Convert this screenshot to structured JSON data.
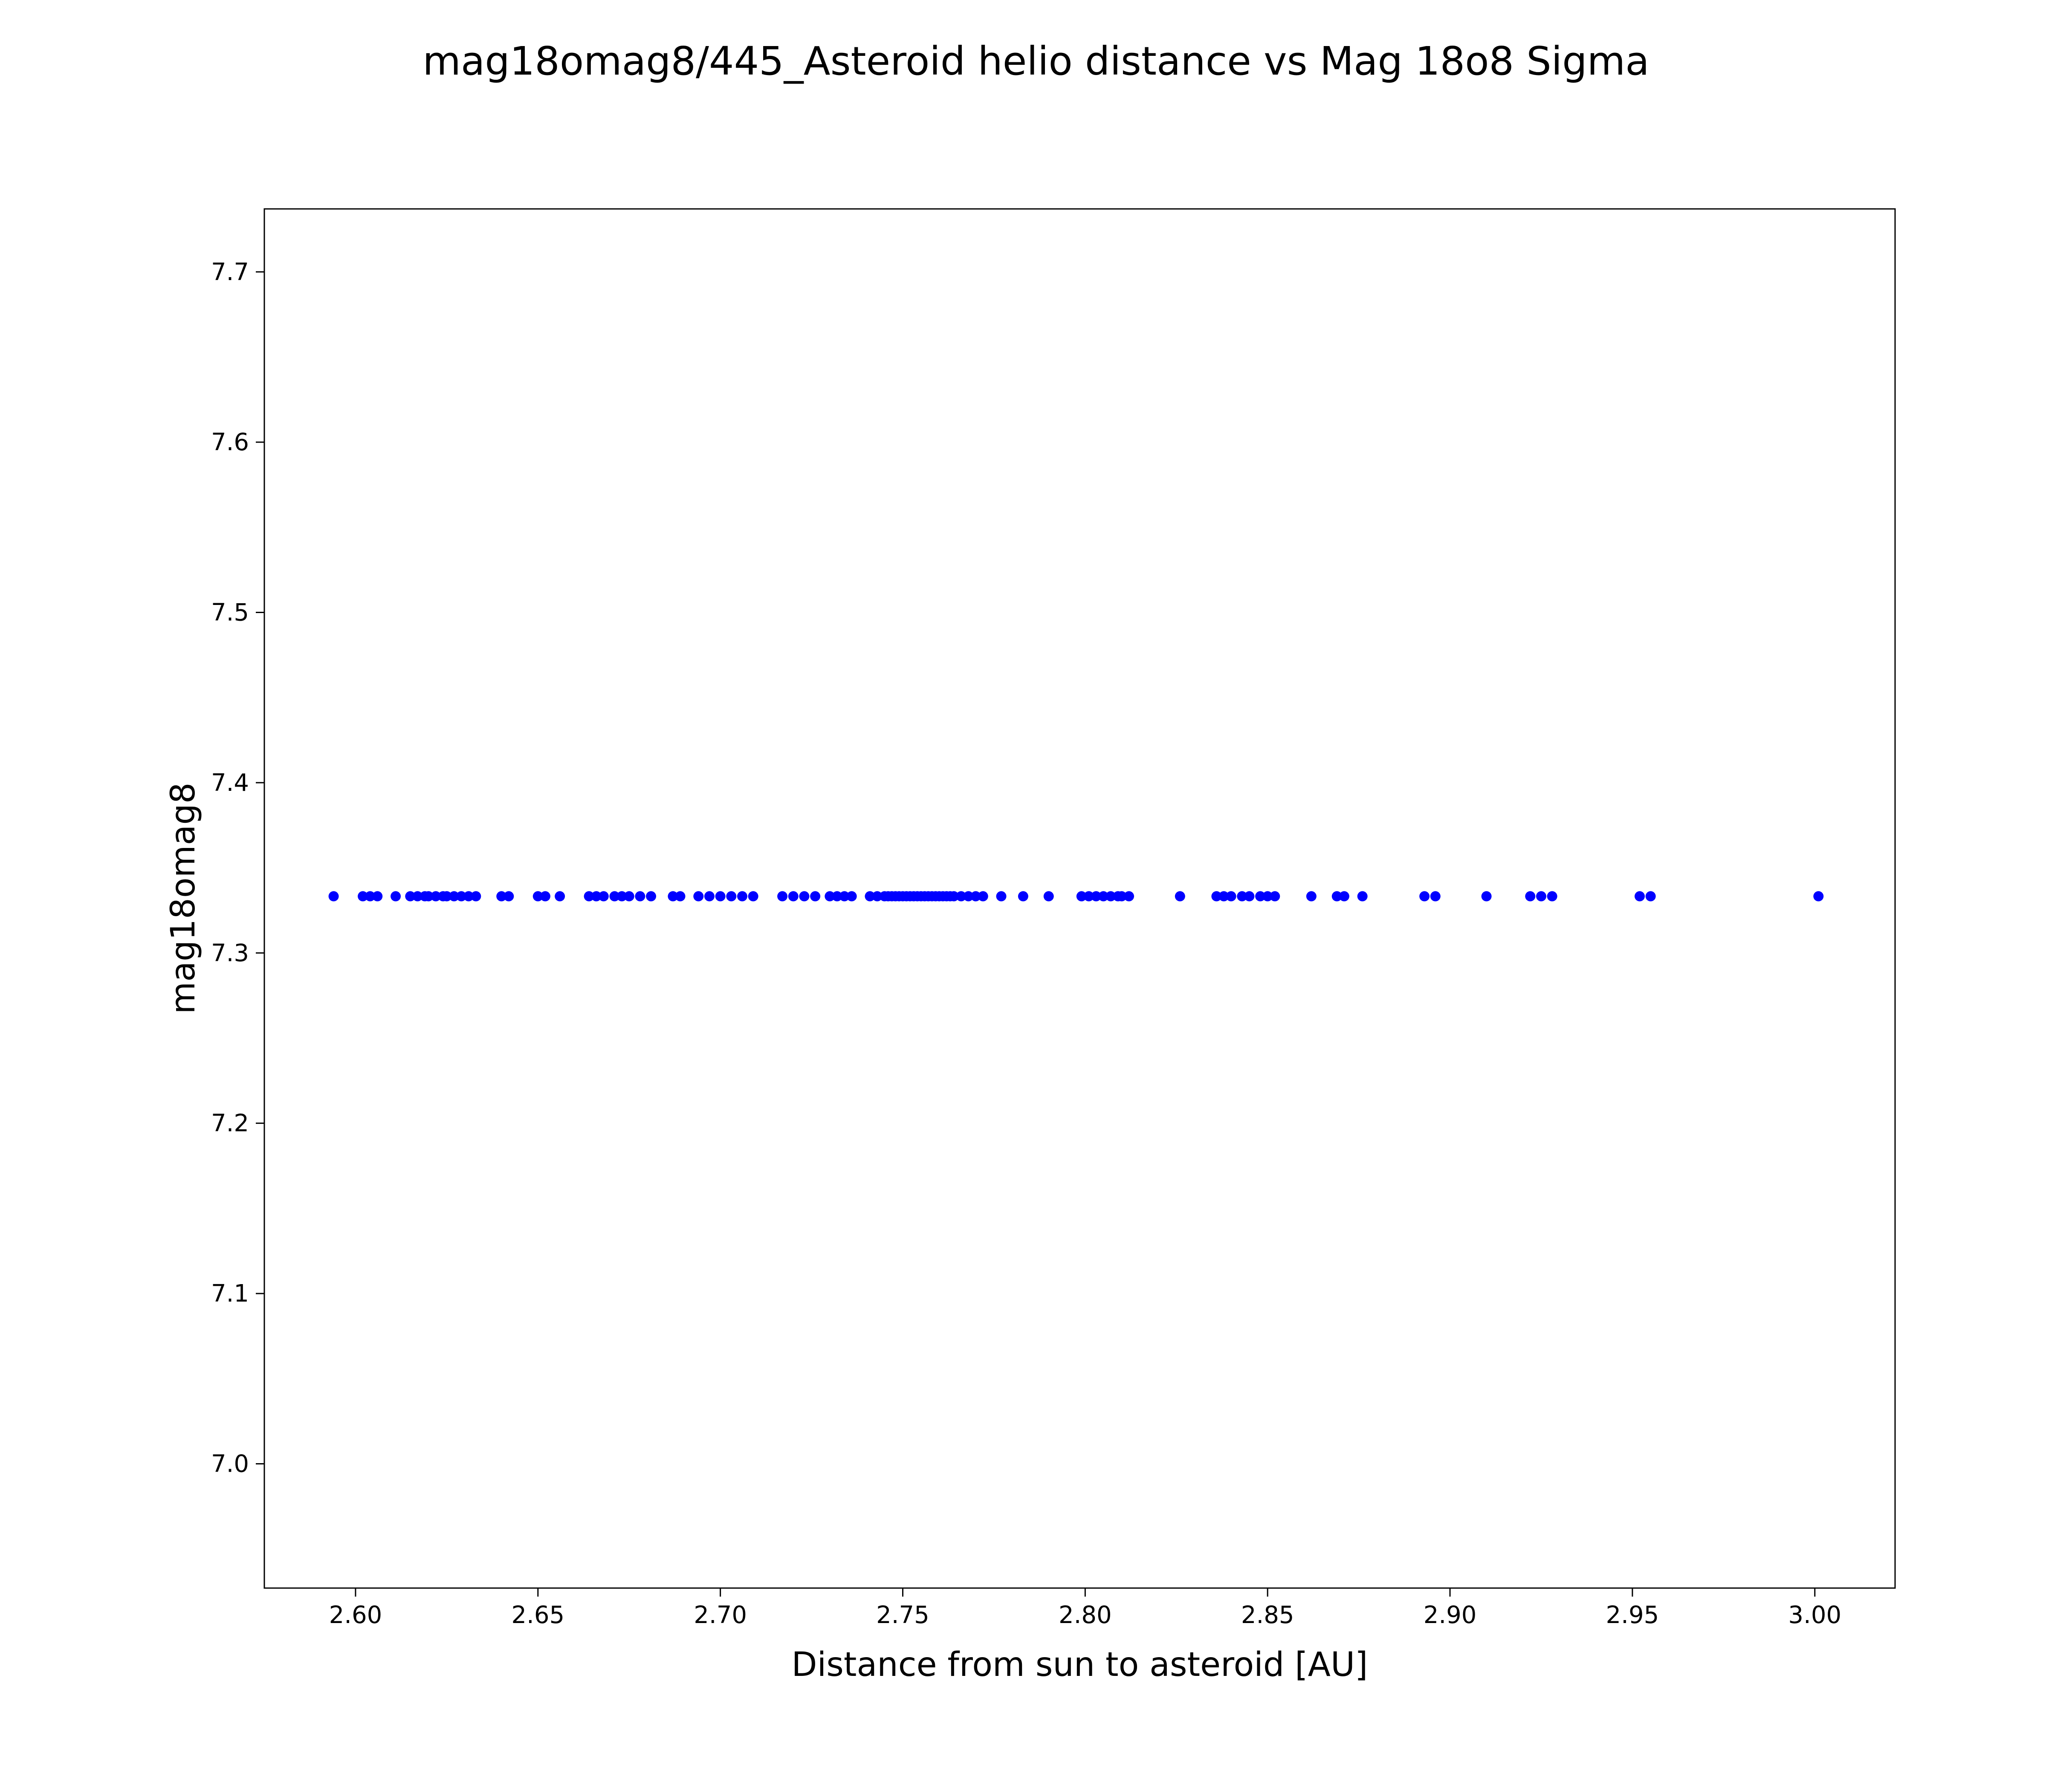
{
  "chart_data": {
    "type": "scatter",
    "title": "mag18omag8/445_Asteroid helio distance vs Mag 18o8 Sigma",
    "xlabel": "Distance from sun to asteroid [AU]",
    "ylabel": "mag18omag8",
    "xlim": [
      2.575,
      3.022
    ],
    "ylim": [
      6.927,
      7.737
    ],
    "xtick_values": [
      2.6,
      2.65,
      2.7,
      2.75,
      2.8,
      2.85,
      2.9,
      2.95,
      3.0
    ],
    "xtick_labels": [
      "2.60",
      "2.65",
      "2.70",
      "2.75",
      "2.80",
      "2.85",
      "2.90",
      "2.95",
      "3.00"
    ],
    "ytick_values": [
      7.0,
      7.1,
      7.2,
      7.3,
      7.4,
      7.5,
      7.6,
      7.7
    ],
    "ytick_labels": [
      "7.0",
      "7.1",
      "7.2",
      "7.3",
      "7.4",
      "7.5",
      "7.6",
      "7.7"
    ],
    "point_color": "#0000ff",
    "grid": false,
    "legend": false,
    "y_constant": 7.3333,
    "x": [
      2.594,
      2.602,
      2.604,
      2.606,
      2.611,
      2.615,
      2.617,
      2.619,
      2.62,
      2.622,
      2.624,
      2.625,
      2.627,
      2.629,
      2.631,
      2.633,
      2.64,
      2.642,
      2.65,
      2.652,
      2.656,
      2.664,
      2.666,
      2.668,
      2.671,
      2.673,
      2.675,
      2.678,
      2.681,
      2.687,
      2.689,
      2.694,
      2.697,
      2.7,
      2.703,
      2.706,
      2.709,
      2.717,
      2.72,
      2.723,
      2.726,
      2.73,
      2.732,
      2.734,
      2.736,
      2.741,
      2.743,
      2.745,
      2.746,
      2.747,
      2.748,
      2.749,
      2.75,
      2.751,
      2.752,
      2.753,
      2.754,
      2.755,
      2.756,
      2.757,
      2.758,
      2.759,
      2.76,
      2.761,
      2.762,
      2.763,
      2.764,
      2.766,
      2.768,
      2.77,
      2.772,
      2.777,
      2.783,
      2.79,
      2.799,
      2.801,
      2.803,
      2.805,
      2.807,
      2.809,
      2.81,
      2.812,
      2.826,
      2.836,
      2.838,
      2.84,
      2.843,
      2.845,
      2.848,
      2.85,
      2.852,
      2.862,
      2.869,
      2.871,
      2.876,
      2.893,
      2.896,
      2.91,
      2.922,
      2.925,
      2.928,
      2.952,
      2.955,
      3.001
    ]
  }
}
